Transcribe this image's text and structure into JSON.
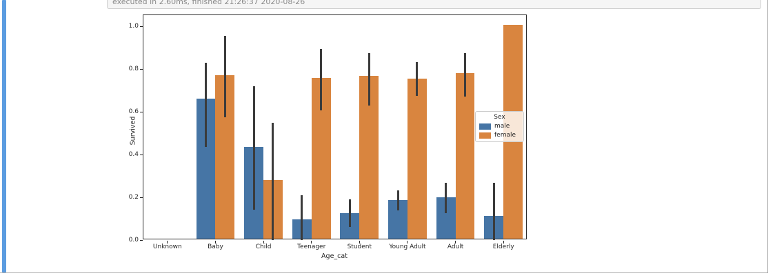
{
  "notebook": {
    "execution_status": "executed in 2.60ms, finished 21:26:37 2020-08-26",
    "accent_color": "#5b9ce0",
    "frame_border_color": "#a9a9a9"
  },
  "chart_data": {
    "type": "bar",
    "title": "",
    "xlabel": "Age_cat",
    "ylabel": "Survived",
    "categories": [
      "Unknown",
      "Baby",
      "Child",
      "Teenager",
      "Student",
      "Young Adult",
      "Adult",
      "Elderly"
    ],
    "series": [
      {
        "name": "male",
        "color": "#4675a5",
        "values": [
          0,
          0.655,
          0.43,
          0.09,
          0.12,
          0.182,
          0.194,
          0.106
        ],
        "errors": [
          null,
          [
            0.435,
            0.83
          ],
          [
            0.143,
            0.72
          ],
          [
            0.0,
            0.21
          ],
          [
            0.06,
            0.19
          ],
          [
            0.138,
            0.233
          ],
          [
            0.125,
            0.267
          ],
          [
            0.0,
            0.268
          ]
        ]
      },
      {
        "name": "female",
        "color": "#d9853f",
        "values": [
          0,
          0.765,
          0.275,
          0.752,
          0.762,
          0.748,
          0.774,
          1.0
        ],
        "errors": [
          null,
          [
            0.573,
            0.955
          ],
          [
            0.0,
            0.55
          ],
          [
            0.607,
            0.895
          ],
          [
            0.629,
            0.876
          ],
          [
            0.673,
            0.832
          ],
          [
            0.67,
            0.875
          ],
          null
        ]
      }
    ],
    "yticks": [
      0.0,
      0.2,
      0.4,
      0.6,
      0.8,
      1.0
    ],
    "ytick_labels": [
      "0.0",
      "0.2",
      "0.4",
      "0.6",
      "0.8",
      "1.0"
    ],
    "ylim": [
      0,
      1.052
    ],
    "group_width_fraction": 0.8,
    "legend": {
      "title": "Sex",
      "position": "center right"
    },
    "grid": false,
    "error_bar_color": "#3b3b3b"
  }
}
